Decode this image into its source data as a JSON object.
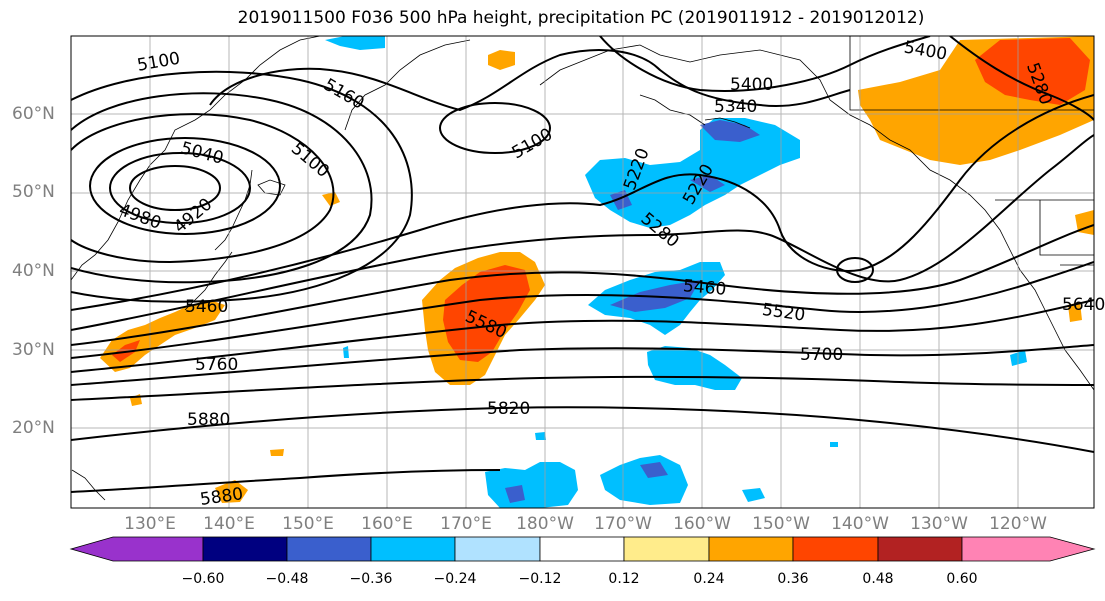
{
  "title": "2019011500 F036 500 hPa height, precipitation PC (2019011912 - 2019012012)",
  "lat_labels": [
    {
      "label": "60°N",
      "lat": 60
    },
    {
      "label": "50°N",
      "lat": 50
    },
    {
      "label": "40°N",
      "lat": 40
    },
    {
      "label": "30°N",
      "lat": 30
    },
    {
      "label": "20°N",
      "lat": 20
    }
  ],
  "lon_labels": [
    {
      "label": "130°E",
      "lon": 130
    },
    {
      "label": "140°E",
      "lon": 140
    },
    {
      "label": "150°E",
      "lon": 150
    },
    {
      "label": "160°E",
      "lon": 160
    },
    {
      "label": "170°E",
      "lon": 170
    },
    {
      "label": "180°W",
      "lon": 180
    },
    {
      "label": "170°W",
      "lon": 190
    },
    {
      "label": "160°W",
      "lon": 200
    },
    {
      "label": "150°W",
      "lon": 210
    },
    {
      "label": "140°W",
      "lon": 220
    },
    {
      "label": "130°W",
      "lon": 230
    },
    {
      "label": "120°W",
      "lon": 240
    }
  ],
  "contour_labels": [
    "5100",
    "5160",
    "5040",
    "4980",
    "4920",
    "5100",
    "5100",
    "5220",
    "5220",
    "5280",
    "5400",
    "5340",
    "5400",
    "5460",
    "5520",
    "5580",
    "5640",
    "5700",
    "5760",
    "5820",
    "5880",
    "5880",
    "5280",
    "5460"
  ],
  "colorbar": {
    "ticks": [
      "−0.60",
      "−0.48",
      "−0.36",
      "−0.24",
      "−0.12",
      "0.12",
      "0.24",
      "0.36",
      "0.48",
      "0.60"
    ],
    "colors": [
      "#9932cc",
      "#000080",
      "#3a5fcd",
      "#00bfff",
      "#b0e2ff",
      "#ffffff",
      "#ffec8b",
      "#ffa500",
      "#ff4500",
      "#b22222",
      "#ff83b4"
    ]
  }
}
